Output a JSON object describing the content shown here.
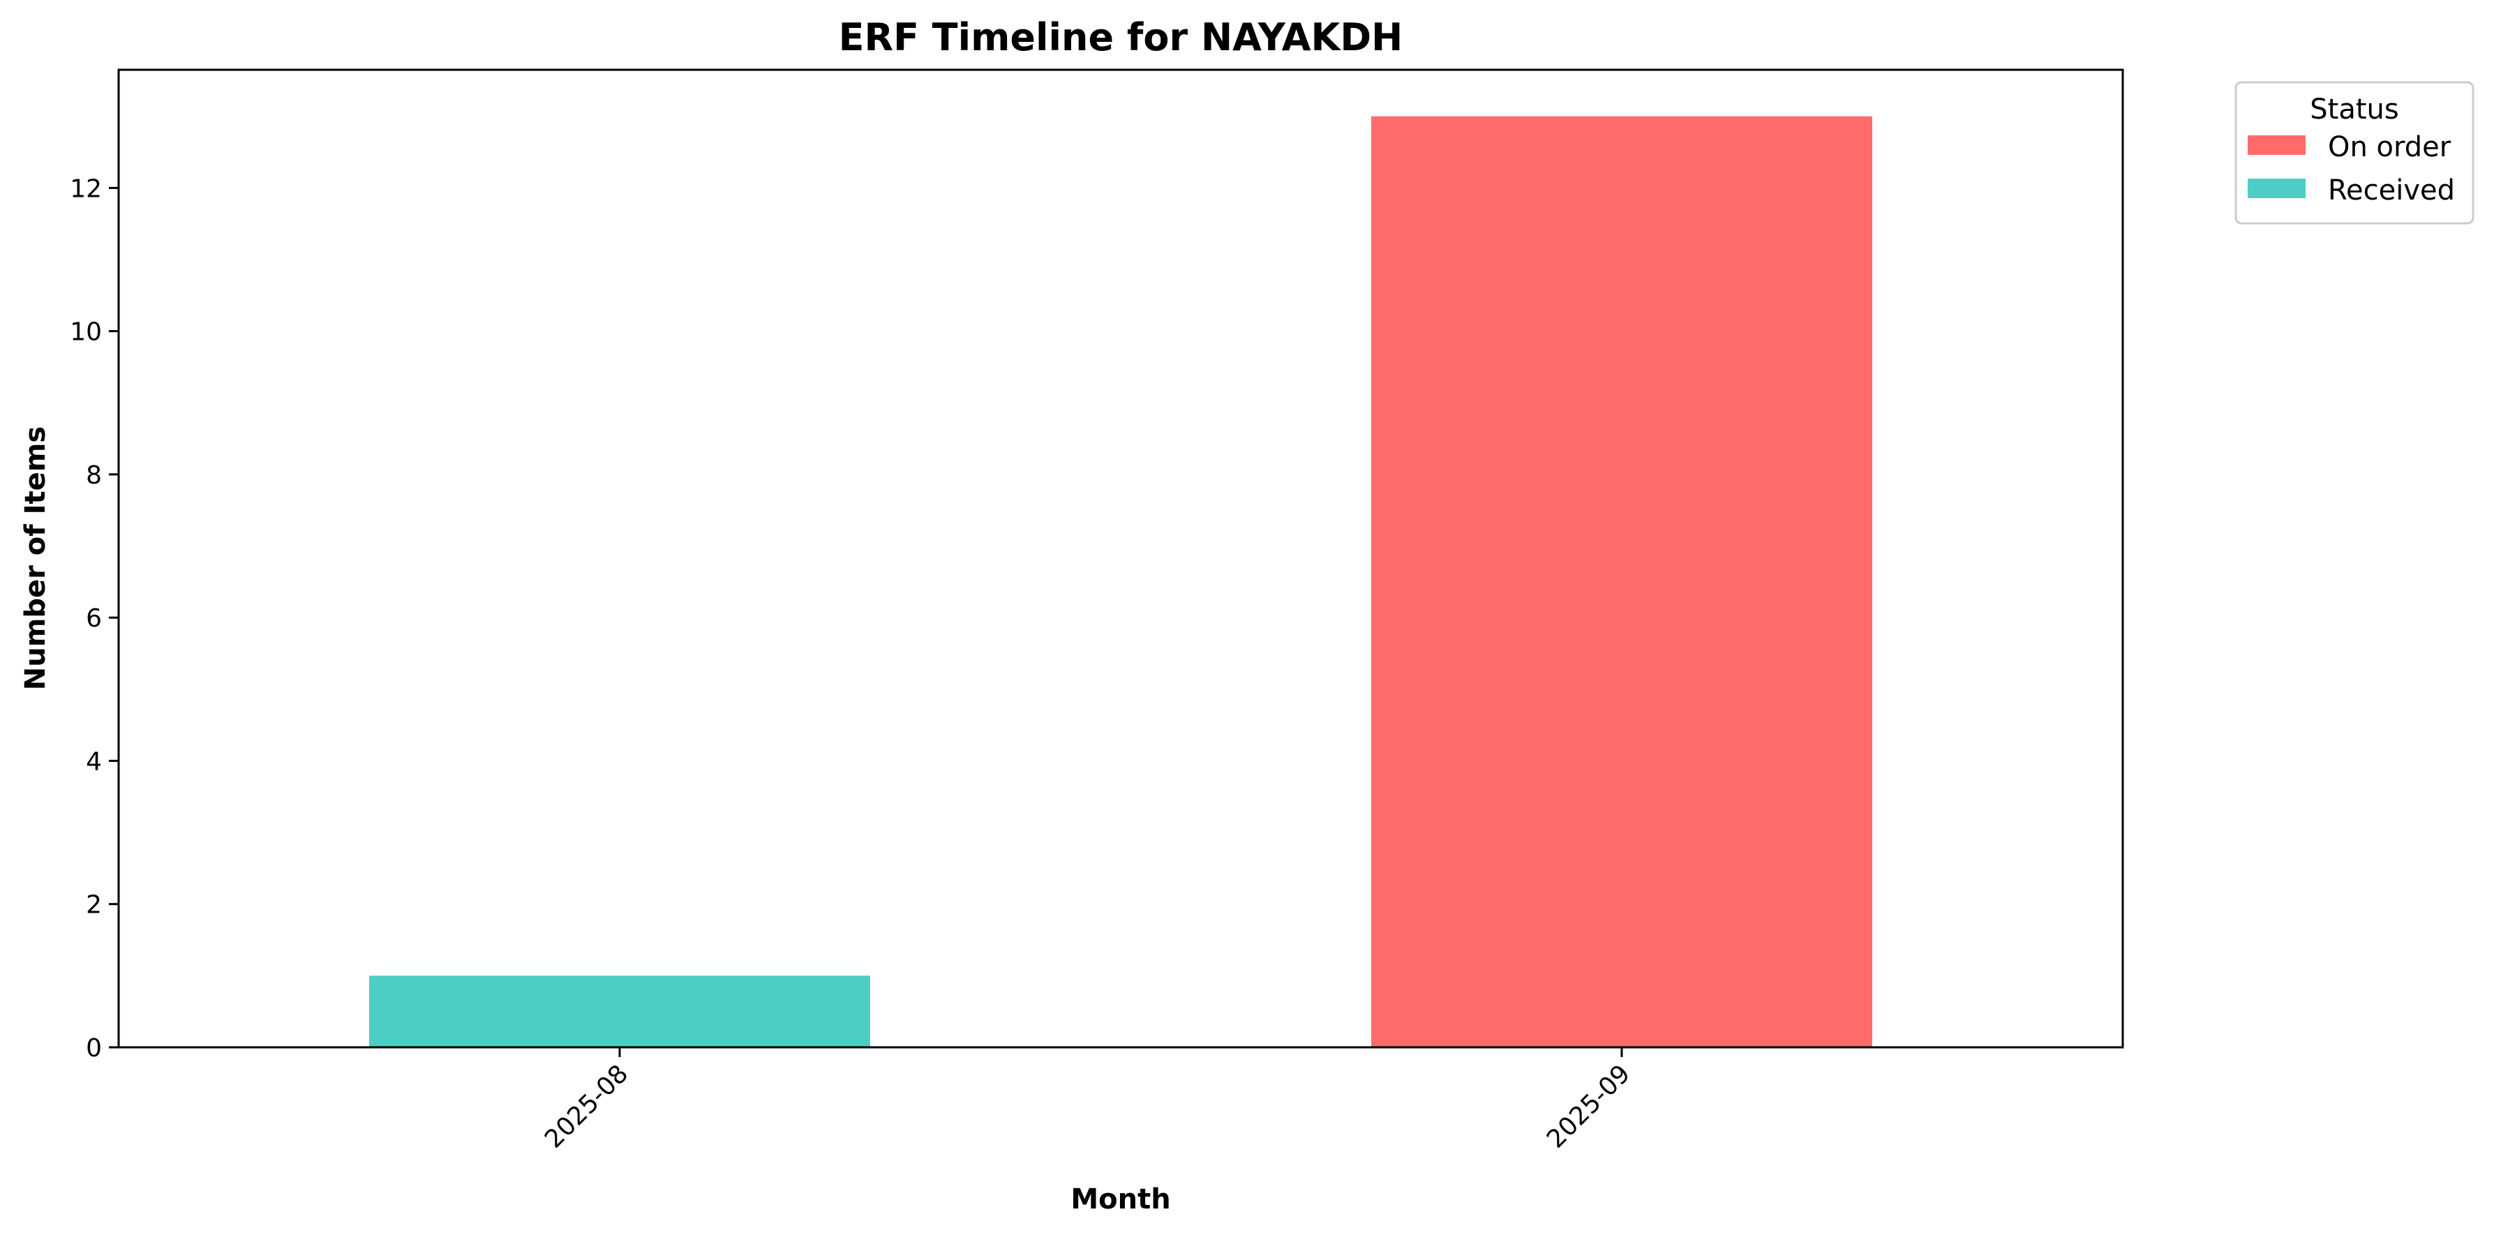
{
  "chart_data": {
    "type": "bar",
    "stacked": true,
    "title": "ERF Timeline for NAYAKDH",
    "xlabel": "Month",
    "ylabel": "Number of Items",
    "categories": [
      "2025-08",
      "2025-09"
    ],
    "series": [
      {
        "name": "On order",
        "values": [
          0,
          13
        ],
        "color": "#ff6b6b"
      },
      {
        "name": "Received",
        "values": [
          1,
          0
        ],
        "color": "#4ecdc4"
      }
    ],
    "ylim": [
      0,
      13.65
    ],
    "yticks": [
      0,
      2,
      4,
      6,
      8,
      10,
      12
    ],
    "grid": false,
    "legend": {
      "title": "Status",
      "placement": "outside-top-right"
    }
  }
}
